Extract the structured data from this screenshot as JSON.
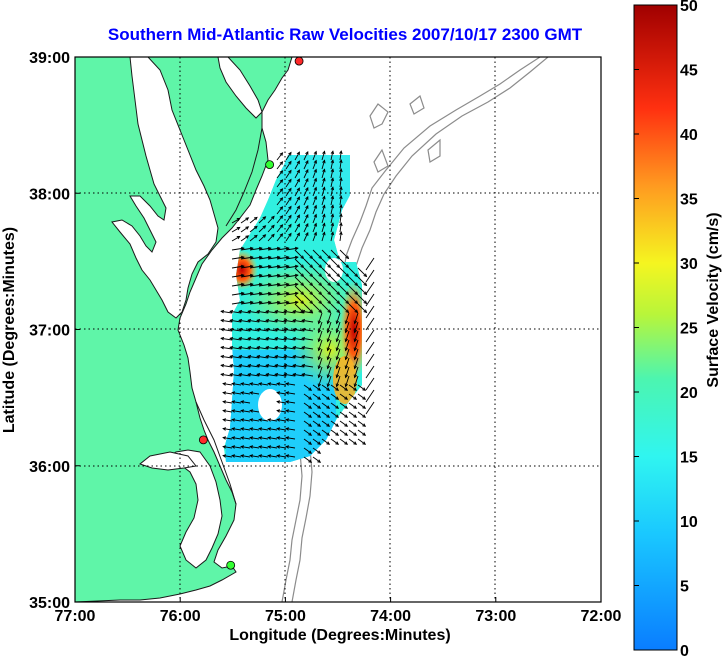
{
  "title": "Southern Mid-Atlantic Raw Velocities 2007/10/17 2300 GMT",
  "x_axis": {
    "label": "Longitude (Degrees:Minutes)",
    "range_deg_west": [
      77,
      72
    ],
    "ticks": [
      "77:00",
      "76:00",
      "75:00",
      "74:00",
      "73:00",
      "72:00"
    ]
  },
  "y_axis": {
    "label": "Latitude (Degrees:Minutes)",
    "range_deg_north": [
      35,
      39
    ],
    "ticks": [
      "35:00",
      "36:00",
      "37:00",
      "38:00",
      "39:00"
    ]
  },
  "colorbar": {
    "label": "Surface Velocity (cm/s)",
    "range": [
      0,
      50
    ],
    "ticks": [
      "0",
      "5",
      "10",
      "15",
      "20",
      "25",
      "30",
      "35",
      "40",
      "45",
      "50"
    ]
  },
  "stations": [
    {
      "lon": -74.87,
      "lat": 38.97,
      "color": "#ff2a2a"
    },
    {
      "lon": -75.15,
      "lat": 38.21,
      "color": "#33ff33"
    },
    {
      "lon": -75.78,
      "lat": 36.19,
      "color": "#ff2a2a"
    },
    {
      "lon": -75.52,
      "lat": 35.27,
      "color": "#33ff33"
    }
  ],
  "colors": {
    "land": "#5ff5a8",
    "coast": "#1a1a1a",
    "bathymetry": "#8c8c8c",
    "title": "#0000ff"
  },
  "chart_data": {
    "type": "heatmap",
    "description_values": "Surface current speed (cm/s) over HF radar coverage, 20-arc-minute regions",
    "coverage_lon_range": [
      -75.6,
      -74.3
    ],
    "coverage_lat_range": [
      36.05,
      38.3
    ],
    "speed_regions": [
      {
        "lon": -75.45,
        "lat": 37.45,
        "speed": 38
      },
      {
        "lon": -74.35,
        "lat": 37.1,
        "speed": 42
      },
      {
        "lon": -74.55,
        "lat": 36.8,
        "speed": 26
      },
      {
        "lon": -74.85,
        "lat": 37.3,
        "speed": 24
      },
      {
        "lon": -75.2,
        "lat": 36.4,
        "speed": 8
      },
      {
        "lon": -75.0,
        "lat": 37.9,
        "speed": 11
      }
    ]
  }
}
